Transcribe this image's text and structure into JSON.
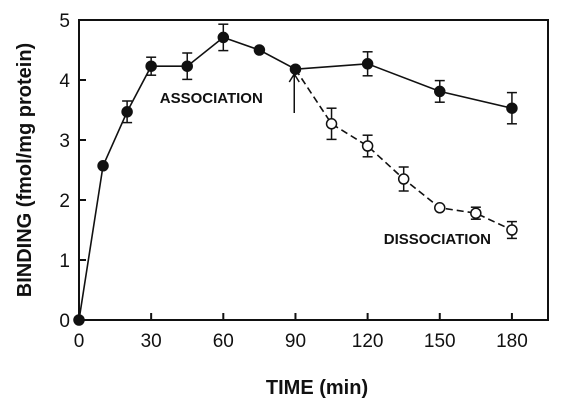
{
  "chart_data": {
    "type": "line",
    "xlabel": "TIME (min)",
    "ylabel": "BINDING (fmol/mg protein)",
    "xlim": [
      0,
      195
    ],
    "ylim": [
      0,
      5
    ],
    "xticks": [
      0,
      30,
      60,
      90,
      120,
      150,
      180
    ],
    "yticks": [
      0,
      1,
      2,
      3,
      4,
      5
    ],
    "grid": false,
    "series": [
      {
        "marker": "filled-circle",
        "line_style": "solid",
        "color": "#111111",
        "x": [
          0,
          10,
          20,
          30,
          45,
          60,
          75,
          90,
          120,
          150,
          180
        ],
        "y": [
          0,
          2.57,
          3.47,
          4.23,
          4.23,
          4.71,
          4.5,
          4.18,
          4.27,
          3.81,
          3.53
        ],
        "error": [
          0,
          0,
          0.18,
          0.15,
          0.22,
          0.22,
          0,
          0,
          0.2,
          0.18,
          0.26
        ]
      },
      {
        "marker": "open-circle",
        "line_style": "dashed",
        "color": "#111111",
        "x": [
          90,
          105,
          120,
          135,
          150,
          165,
          180
        ],
        "y": [
          4.18,
          3.27,
          2.9,
          2.35,
          1.87,
          1.78,
          1.5
        ],
        "error": [
          0,
          0.26,
          0.18,
          0.2,
          0,
          0.1,
          0.14
        ]
      }
    ],
    "annotations": [
      {
        "text": "ASSOCIATION",
        "x": 55,
        "y": 3.7
      },
      {
        "text": "DISSOCIATION",
        "x": 149,
        "y": 1.35
      }
    ],
    "arrow": {
      "x": 89.5,
      "y_from": 3.45,
      "y_to": 4.1
    }
  }
}
